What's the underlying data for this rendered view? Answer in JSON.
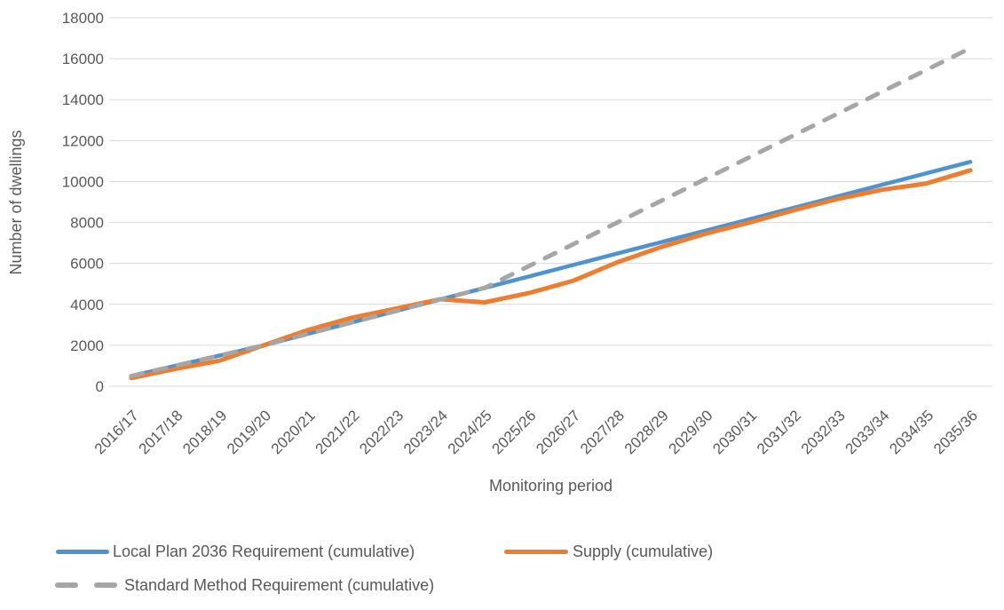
{
  "chart_data": {
    "type": "line",
    "title": "",
    "xlabel": "Monitoring period",
    "ylabel": "Number of dwellings",
    "ylim": [
      0,
      18000
    ],
    "y_tick_step": 2000,
    "grid": "horizontal-only",
    "legend_position": "bottom",
    "categories": [
      "2016/17",
      "2017/18",
      "2018/19",
      "2019/20",
      "2020/21",
      "2021/22",
      "2022/23",
      "2023/24",
      "2024/25",
      "2025/26",
      "2026/27",
      "2027/28",
      "2028/29",
      "2029/30",
      "2030/31",
      "2031/32",
      "2032/33",
      "2033/34",
      "2034/35",
      "2035/36"
    ],
    "series": [
      {
        "name": "Local Plan 2036 Requirement (cumulative)",
        "color": "#4F92D1",
        "style": "solid",
        "width": 4.5,
        "values": [
          500,
          1000,
          1500,
          2000,
          2560,
          3120,
          3680,
          4240,
          4800,
          5360,
          5920,
          6480,
          7040,
          7600,
          8160,
          8720,
          9280,
          9840,
          10400,
          10960
        ]
      },
      {
        "name": "Supply (cumulative)",
        "color": "#ED7D31",
        "style": "solid",
        "width": 5,
        "values": [
          400,
          850,
          1250,
          2000,
          2750,
          3350,
          3800,
          4250,
          4100,
          4550,
          5150,
          6050,
          6800,
          7450,
          8000,
          8600,
          9150,
          9600,
          9900,
          10550
        ]
      },
      {
        "name": "Standard Method Requirement (cumulative)",
        "color": "#A6A6A6",
        "style": "dashed",
        "width": 5,
        "values": [
          500,
          1000,
          1500,
          2000,
          2560,
          3120,
          3680,
          4240,
          4800,
          5865,
          6930,
          7995,
          9060,
          10125,
          11190,
          12255,
          13320,
          14385,
          15450,
          16515
        ]
      }
    ]
  },
  "colors": {
    "gridline": "#D9D9D9",
    "tick_text": "#595959",
    "background": "#FFFFFF"
  }
}
